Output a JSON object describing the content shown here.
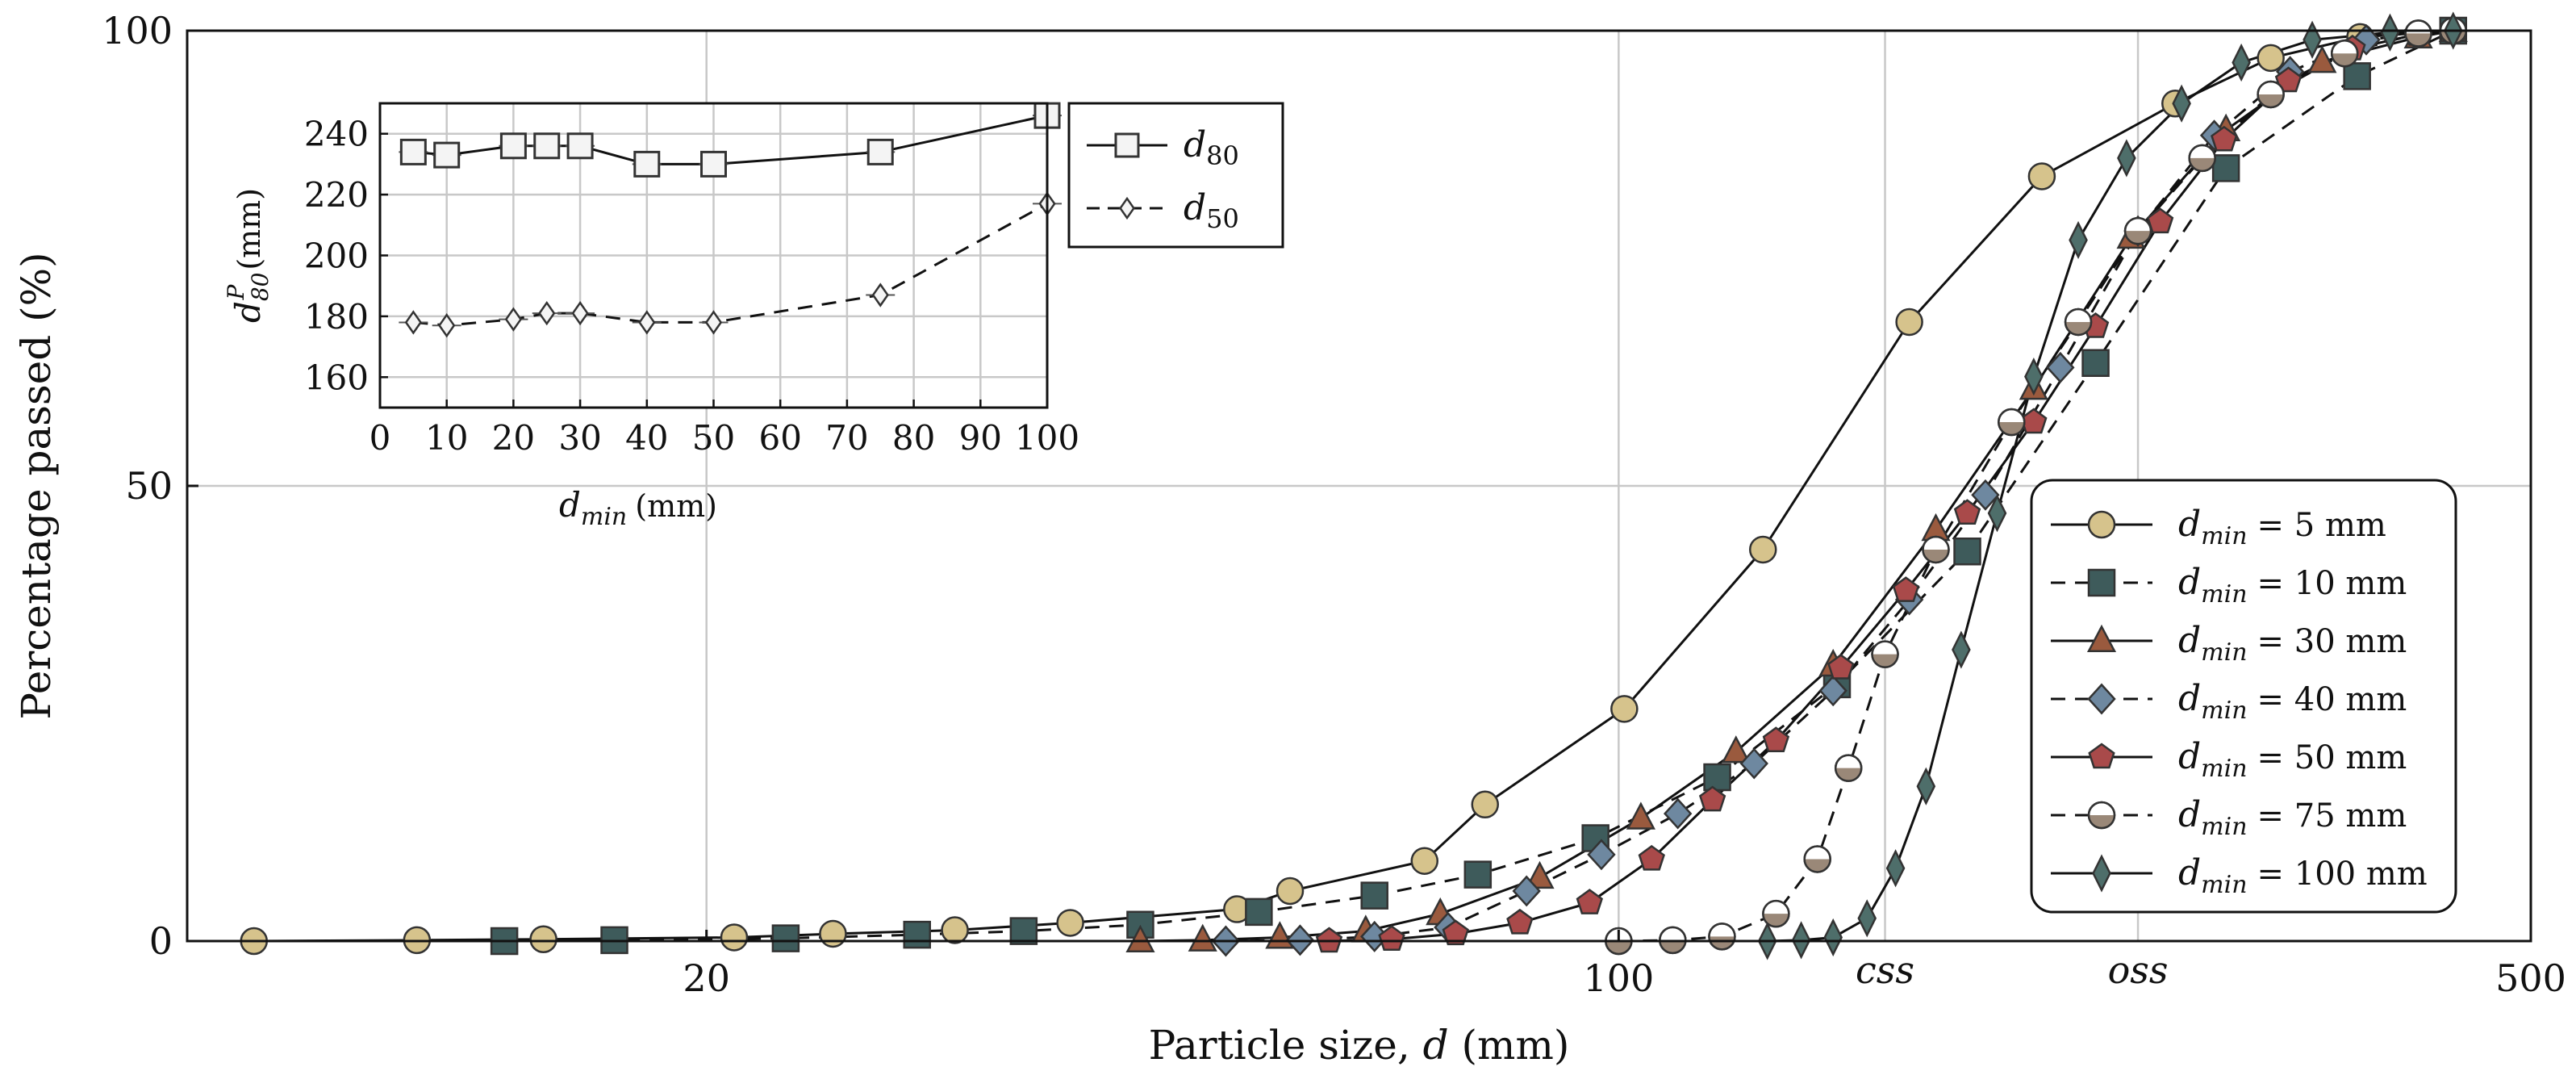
{
  "chart_data": [
    {
      "type": "line",
      "title": "",
      "xlabel": "Particle size, d (mm)",
      "ylabel": "Percentage passed (%)",
      "x_scale": "log",
      "xlim": [
        8,
        500
      ],
      "ylim": [
        0,
        100
      ],
      "x_ticks": [
        {
          "value": 20,
          "label": "20"
        },
        {
          "value": 100,
          "label": "100"
        },
        {
          "value": 500,
          "label": "500"
        }
      ],
      "x_markers": [
        {
          "value": 160,
          "label": "css"
        },
        {
          "value": 250,
          "label": "oss"
        }
      ],
      "y_ticks": [
        0,
        50,
        100
      ],
      "grid": true,
      "legend": "right",
      "series": [
        {
          "name": "d_min = 5 mm",
          "legend_label": "= 5 mm",
          "marker": "circle",
          "style": "solid",
          "color": "#d6c38c",
          "x": [
            9,
            12,
            15,
            21,
            25,
            31,
            38,
            51,
            56,
            71,
            79,
            101,
            129,
            167,
            211,
            267,
            316,
            370,
            436
          ],
          "y": [
            0.0,
            0.1,
            0.2,
            0.4,
            0.8,
            1.2,
            2.0,
            3.5,
            5.5,
            8.8,
            15.0,
            25.5,
            43.0,
            68.0,
            84.0,
            92.0,
            97.0,
            99.3,
            100
          ]
        },
        {
          "name": "d_min = 10 mm",
          "legend_label": "= 10 mm",
          "marker": "square",
          "style": "dashed",
          "color": "#3e5b5b",
          "x": [
            14,
            17,
            23,
            29,
            35,
            43,
            53,
            65,
            78,
            96,
            119,
            147,
            185,
            232,
            292,
            368,
            436
          ],
          "y": [
            0.0,
            0.1,
            0.3,
            0.7,
            1.1,
            1.8,
            3.2,
            5.0,
            7.3,
            11.3,
            18.0,
            28.2,
            42.8,
            63.5,
            84.9,
            95.0,
            100
          ]
        },
        {
          "name": "d_min = 30 mm",
          "legend_label": "= 30 mm",
          "marker": "triangle",
          "style": "solid",
          "color": "#9a5a3e",
          "x": [
            43,
            48,
            55,
            64,
            73,
            87,
            104,
            123,
            146,
            175,
            208,
            247,
            292,
            346,
            410,
            436
          ],
          "y": [
            0.0,
            0.1,
            0.4,
            1.1,
            3.0,
            7.0,
            13.5,
            20.8,
            30.3,
            45.2,
            60.7,
            77.3,
            89.1,
            96.6,
            99.3,
            100
          ]
        },
        {
          "name": "d_min = 40 mm",
          "legend_label": "= 40 mm",
          "marker": "diamond",
          "style": "dashed",
          "color": "#6e88a0",
          "x": [
            50,
            57,
            65,
            74,
            85,
            97,
            111,
            127,
            146,
            167,
            191,
            218,
            250,
            286,
            327,
            374,
            436
          ],
          "y": [
            0.0,
            0.1,
            0.5,
            1.5,
            5.5,
            9.5,
            14.0,
            19.5,
            27.5,
            37.5,
            49.0,
            63.0,
            78.0,
            88.5,
            95.5,
            99.0,
            100
          ]
        },
        {
          "name": "d_min = 50 mm",
          "legend_label": "= 50 mm",
          "marker": "pentagon",
          "style": "solid",
          "color": "#a94a4a",
          "x": [
            60,
            67,
            75,
            84,
            95,
            106,
            118,
            132,
            148,
            166,
            185,
            208,
            232,
            260,
            291,
            326,
            365,
            409,
            436
          ],
          "y": [
            0.0,
            0.2,
            0.8,
            2.0,
            4.2,
            9.0,
            15.5,
            22.0,
            30.0,
            38.5,
            47.0,
            57.0,
            67.5,
            79.0,
            88.0,
            94.5,
            98.0,
            99.6,
            100
          ]
        },
        {
          "name": "d_min = 75 mm",
          "legend_label": "= 75 mm",
          "marker": "circle-half",
          "style": "dashed",
          "color": "#9a8878",
          "x": [
            100,
            110,
            120,
            132,
            142,
            150,
            160,
            175,
            200,
            225,
            250,
            280,
            316,
            360,
            410,
            436
          ],
          "y": [
            0.0,
            0.1,
            0.5,
            3.0,
            9.0,
            19.0,
            31.5,
            43.0,
            57.0,
            68.0,
            78.0,
            86.0,
            93.0,
            97.5,
            99.7,
            100
          ]
        },
        {
          "name": "d_min = 100 mm",
          "legend_label": "= 100 mm",
          "marker": "diamond-thin",
          "style": "solid",
          "color": "#4e6e6a",
          "x": [
            130,
            138,
            146,
            155,
            163,
            172,
            183,
            195,
            208,
            225,
            245,
            270,
            300,
            340,
            390,
            436
          ],
          "y": [
            0.0,
            0.1,
            0.4,
            2.5,
            8.0,
            17.0,
            32.0,
            47.0,
            62.0,
            77.0,
            86.0,
            92.0,
            96.5,
            99.0,
            99.8,
            100
          ]
        }
      ]
    },
    {
      "type": "line",
      "title": "",
      "xlabel": "d_min (mm)",
      "xlabel_unit": "(mm)",
      "ylabel": "d80^P (mm)",
      "ylabel_unit": "(mm)",
      "xlim": [
        0,
        100
      ],
      "ylim": [
        150,
        250
      ],
      "x_ticks": [
        0,
        10,
        20,
        30,
        40,
        50,
        60,
        70,
        80,
        90,
        100
      ],
      "y_ticks": [
        160,
        180,
        200,
        220,
        240
      ],
      "grid": true,
      "legend": "right",
      "series": [
        {
          "name": "d80",
          "legend_main": "d",
          "legend_sub": "80",
          "marker": "square-open",
          "style": "solid",
          "x": [
            5,
            10,
            20,
            25,
            30,
            40,
            50,
            75,
            100
          ],
          "y": [
            234,
            233,
            236,
            236,
            236,
            230,
            230,
            234,
            246
          ]
        },
        {
          "name": "d50",
          "legend_main": "d",
          "legend_sub": "50",
          "marker": "diamond-small",
          "style": "dashed",
          "x": [
            5,
            10,
            20,
            25,
            30,
            40,
            50,
            75,
            100
          ],
          "y": [
            178,
            177,
            179,
            181,
            181,
            178,
            178,
            187,
            217
          ]
        }
      ]
    }
  ]
}
